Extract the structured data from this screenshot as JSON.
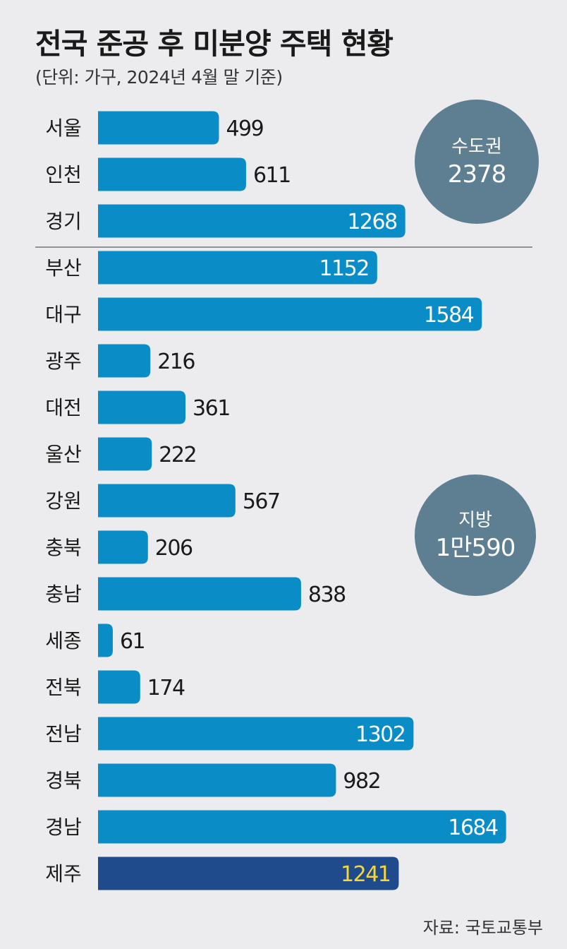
{
  "title": "전국 준공 후 미분양 주택 현황",
  "subtitle": "(단위: 가구, 2024년 4월 말 기준)",
  "source": "자료: 국토교통부",
  "badges": {
    "capital": {
      "name": "수도권",
      "total": "2378"
    },
    "local": {
      "name": "지방",
      "total": "1만590"
    }
  },
  "colors": {
    "bar": "#0a8dc6",
    "bar_highlight": "#1f4b8c",
    "badge": "#5e7e92",
    "value_inside": "#ffffff",
    "value_highlight": "#f5d63c",
    "value_outside": "#1a1a1a",
    "background": "#ececee"
  },
  "chart_data": {
    "type": "bar",
    "orientation": "horizontal",
    "categories": [
      "서울",
      "인천",
      "경기",
      "부산",
      "대구",
      "광주",
      "대전",
      "울산",
      "강원",
      "충북",
      "충남",
      "세종",
      "전북",
      "전남",
      "경북",
      "경남",
      "제주"
    ],
    "values": [
      499,
      611,
      1268,
      1152,
      1584,
      216,
      361,
      222,
      567,
      206,
      838,
      61,
      174,
      1302,
      982,
      1684,
      1241
    ],
    "highlight_category": "제주",
    "group_divider_after": "경기"
  }
}
